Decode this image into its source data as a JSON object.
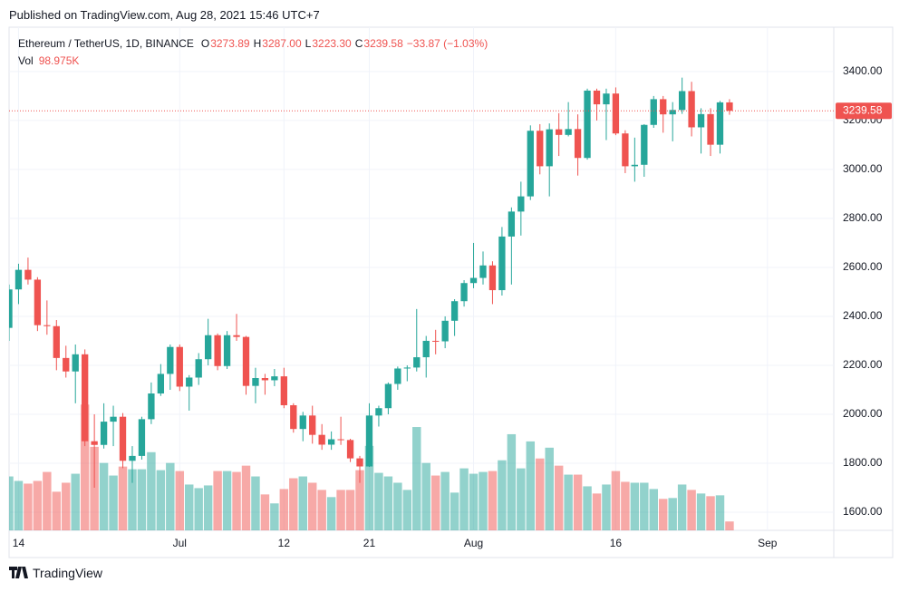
{
  "header": {
    "published": "Published on TradingView.com, Aug 28, 2021 15:46 UTC+7"
  },
  "footer": {
    "brand": "TradingView"
  },
  "chart_data": {
    "type": "candlestick",
    "legend": {
      "symbol": "Ethereum / TetherUS, 1D, BINANCE",
      "items": [
        {
          "label": "O",
          "value": "3273.89"
        },
        {
          "label": "H",
          "value": "3287.00"
        },
        {
          "label": "L",
          "value": "3223.30"
        },
        {
          "label": "C",
          "value": "3239.58"
        }
      ],
      "change": "−33.87 (−1.03%)",
      "volume": {
        "label": "Vol",
        "value": "98.975K"
      }
    },
    "up_color": "#26a69a",
    "down_color": "#ef5350",
    "x": [
      "2021-06-13",
      "2021-06-14",
      "2021-06-15",
      "2021-06-16",
      "2021-06-17",
      "2021-06-18",
      "2021-06-19",
      "2021-06-20",
      "2021-06-21",
      "2021-06-22",
      "2021-06-23",
      "2021-06-24",
      "2021-06-25",
      "2021-06-26",
      "2021-06-27",
      "2021-06-28",
      "2021-06-29",
      "2021-06-30",
      "2021-07-01",
      "2021-07-02",
      "2021-07-03",
      "2021-07-04",
      "2021-07-05",
      "2021-07-06",
      "2021-07-07",
      "2021-07-08",
      "2021-07-09",
      "2021-07-10",
      "2021-07-11",
      "2021-07-12",
      "2021-07-13",
      "2021-07-14",
      "2021-07-15",
      "2021-07-16",
      "2021-07-17",
      "2021-07-18",
      "2021-07-19",
      "2021-07-20",
      "2021-07-21",
      "2021-07-22",
      "2021-07-23",
      "2021-07-24",
      "2021-07-25",
      "2021-07-26",
      "2021-07-27",
      "2021-07-28",
      "2021-07-29",
      "2021-07-30",
      "2021-07-31",
      "2021-08-01",
      "2021-08-02",
      "2021-08-03",
      "2021-08-04",
      "2021-08-05",
      "2021-08-06",
      "2021-08-07",
      "2021-08-08",
      "2021-08-09",
      "2021-08-10",
      "2021-08-11",
      "2021-08-12",
      "2021-08-13",
      "2021-08-14",
      "2021-08-15",
      "2021-08-16",
      "2021-08-17",
      "2021-08-18",
      "2021-08-19",
      "2021-08-20",
      "2021-08-21",
      "2021-08-22",
      "2021-08-23",
      "2021-08-24",
      "2021-08-25",
      "2021-08-26",
      "2021-08-27",
      "2021-08-28"
    ],
    "open": [
      2353,
      2510,
      2590,
      2550,
      2364,
      2360,
      2230,
      2175,
      2245,
      1890,
      1875,
      1970,
      1990,
      1810,
      1830,
      1980,
      2085,
      2165,
      2275,
      2113,
      2150,
      2225,
      2323,
      2197,
      2323,
      2316,
      2116,
      2148,
      2139,
      2155,
      2037,
      1940,
      1995,
      1916,
      1876,
      1898,
      1895,
      1820,
      1787,
      1995,
      2025,
      2124,
      2187,
      2191,
      2233,
      2300,
      2298,
      2382,
      2462,
      2536,
      2557,
      2608,
      2507,
      2726,
      2828,
      2890,
      3158,
      3013,
      3164,
      3141,
      3165,
      3047,
      3322,
      3266,
      3310,
      3147,
      3013,
      3019,
      3182,
      3287,
      3225,
      3243,
      3320,
      3172,
      3226,
      3101,
      3273.89
    ],
    "high": [
      2530,
      2615,
      2640,
      2560,
      2465,
      2385,
      2280,
      2285,
      2265,
      2000,
      2045,
      2035,
      2005,
      1870,
      1990,
      2130,
      2205,
      2285,
      2285,
      2160,
      2250,
      2390,
      2330,
      2340,
      2410,
      2320,
      2190,
      2165,
      2185,
      2190,
      2045,
      2010,
      2035,
      1960,
      1930,
      1990,
      1900,
      1830,
      2045,
      2035,
      2130,
      2195,
      2200,
      2430,
      2320,
      2345,
      2400,
      2470,
      2548,
      2700,
      2665,
      2625,
      2765,
      2845,
      2950,
      3180,
      3185,
      3188,
      3230,
      3275,
      3225,
      3330,
      3330,
      3330,
      3335,
      3160,
      3130,
      3185,
      3300,
      3300,
      3275,
      3375,
      3358,
      3250,
      3250,
      3280,
      3287.0
    ],
    "low": [
      2300,
      2450,
      2530,
      2340,
      2325,
      2180,
      2150,
      2045,
      1870,
      1700,
      1860,
      1870,
      1780,
      1720,
      1815,
      1960,
      2075,
      2100,
      2095,
      2015,
      2120,
      2200,
      2180,
      2185,
      2300,
      2080,
      2045,
      2080,
      2115,
      2025,
      1925,
      1890,
      1880,
      1855,
      1855,
      1875,
      1805,
      1720,
      1785,
      1950,
      2000,
      2100,
      2135,
      2175,
      2150,
      2245,
      2270,
      2320,
      2440,
      2515,
      2530,
      2450,
      2485,
      2530,
      2730,
      2875,
      2980,
      2890,
      3055,
      3135,
      2975,
      3040,
      3200,
      3120,
      3140,
      2985,
      2950,
      2970,
      3170,
      3150,
      3115,
      3227,
      3135,
      3065,
      3055,
      3065,
      3223.3
    ],
    "close": [
      2510,
      2590,
      2550,
      2364,
      2360,
      2230,
      2175,
      2245,
      1890,
      1875,
      1970,
      1990,
      1810,
      1830,
      1980,
      2085,
      2165,
      2275,
      2113,
      2150,
      2225,
      2323,
      2197,
      2323,
      2316,
      2116,
      2148,
      2139,
      2155,
      2037,
      1940,
      1995,
      1916,
      1876,
      1898,
      1895,
      1820,
      1787,
      1995,
      2025,
      2124,
      2187,
      2191,
      2233,
      2300,
      2298,
      2382,
      2462,
      2536,
      2557,
      2608,
      2507,
      2726,
      2828,
      2890,
      3158,
      3013,
      3164,
      3141,
      3165,
      3047,
      3322,
      3266,
      3310,
      3147,
      3013,
      3019,
      3182,
      3287,
      3225,
      3243,
      3320,
      3172,
      3226,
      3101,
      3274,
      3239.58
    ],
    "volume": [
      600000,
      550000,
      520000,
      550000,
      650000,
      430000,
      530000,
      630000,
      1400000,
      930000,
      750000,
      610000,
      710000,
      680000,
      680000,
      870000,
      670000,
      750000,
      660000,
      510000,
      470000,
      500000,
      660000,
      660000,
      650000,
      720000,
      600000,
      400000,
      300000,
      460000,
      580000,
      600000,
      530000,
      450000,
      370000,
      450000,
      450000,
      670000,
      940000,
      640000,
      600000,
      530000,
      450000,
      1150000,
      750000,
      610000,
      650000,
      420000,
      690000,
      630000,
      650000,
      660000,
      780000,
      1070000,
      690000,
      990000,
      800000,
      920000,
      720000,
      620000,
      620000,
      490000,
      410000,
      510000,
      660000,
      540000,
      530000,
      530000,
      460000,
      350000,
      360000,
      510000,
      450000,
      410000,
      380000,
      390000,
      98975
    ],
    "volume_lim": [
      0,
      5600000
    ],
    "xlim": [
      "2021-06-13",
      "2021-09-08"
    ],
    "xticks": [
      {
        "value": "2021-06-14",
        "label": "14"
      },
      {
        "value": "2021-07-01",
        "label": "Jul"
      },
      {
        "value": "2021-07-12",
        "label": "12"
      },
      {
        "value": "2021-07-21",
        "label": "21"
      },
      {
        "value": "2021-08-01",
        "label": "Aug"
      },
      {
        "value": "2021-08-16",
        "label": "16"
      },
      {
        "value": "2021-09-01",
        "label": "Sep"
      }
    ],
    "ylim": [
      1526,
      3581
    ],
    "yticks": [
      {
        "value": 1600,
        "label": "1600.00"
      },
      {
        "value": 1800,
        "label": "1800.00"
      },
      {
        "value": 2000,
        "label": "2000.00"
      },
      {
        "value": 2200,
        "label": "2200.00"
      },
      {
        "value": 2400,
        "label": "2400.00"
      },
      {
        "value": 2600,
        "label": "2600.00"
      },
      {
        "value": 2800,
        "label": "2800.00"
      },
      {
        "value": 3000,
        "label": "3000.00"
      },
      {
        "value": 3200,
        "label": "3200.00"
      },
      {
        "value": 3400,
        "label": "3400.00"
      }
    ],
    "grid": true
  }
}
